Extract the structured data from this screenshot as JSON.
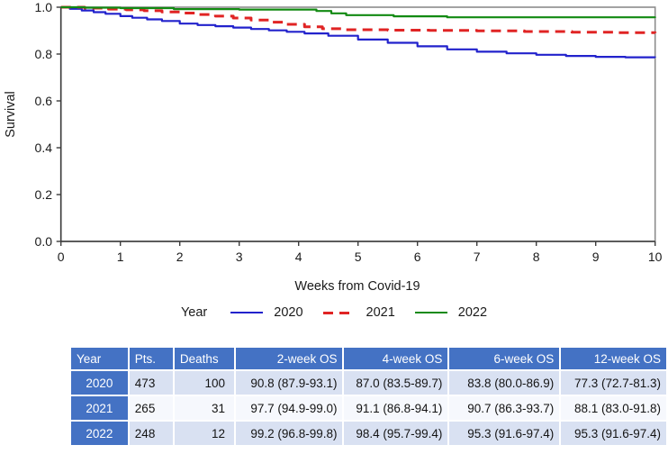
{
  "chart_data": {
    "type": "line",
    "subtype": "kaplan-meier-step",
    "title": "",
    "xlabel": "Weeks from Covid-19",
    "ylabel": "Survival",
    "xlim": [
      0,
      10
    ],
    "ylim": [
      0.0,
      1.0
    ],
    "grid": false,
    "xticks": [
      {
        "label": "0",
        "value": 0
      },
      {
        "label": "1",
        "value": 1
      },
      {
        "label": "2",
        "value": 2
      },
      {
        "label": "3",
        "value": 3
      },
      {
        "label": "4",
        "value": 4
      },
      {
        "label": "5",
        "value": 5
      },
      {
        "label": "6",
        "value": 6
      },
      {
        "label": "7",
        "value": 7
      },
      {
        "label": "8",
        "value": 8
      },
      {
        "label": "9",
        "value": 9
      },
      {
        "label": "10",
        "value": 10
      }
    ],
    "yticks": [
      {
        "label": "0.0",
        "value": 0.0
      },
      {
        "label": "0.2",
        "value": 0.2
      },
      {
        "label": "0.4",
        "value": 0.4
      },
      {
        "label": "0.6",
        "value": 0.6
      },
      {
        "label": "0.8",
        "value": 0.8
      },
      {
        "label": "1.0",
        "value": 1.0
      }
    ],
    "legend": {
      "title": "Year",
      "position": "bottom"
    },
    "series": [
      {
        "name": "2020",
        "color": "#2222cc",
        "style": "solid",
        "x": [
          0,
          0.15,
          0.35,
          0.55,
          0.75,
          1.0,
          1.2,
          1.45,
          1.7,
          2.0,
          2.3,
          2.6,
          2.9,
          3.2,
          3.5,
          3.8,
          4.1,
          4.5,
          5.0,
          5.5,
          6.0,
          6.5,
          7.0,
          7.5,
          8.0,
          8.5,
          9.0,
          9.5,
          10
        ],
        "y": [
          1.0,
          0.993,
          0.986,
          0.979,
          0.972,
          0.962,
          0.955,
          0.948,
          0.941,
          0.93,
          0.924,
          0.919,
          0.913,
          0.907,
          0.901,
          0.895,
          0.888,
          0.878,
          0.862,
          0.848,
          0.833,
          0.82,
          0.81,
          0.803,
          0.797,
          0.792,
          0.788,
          0.786,
          0.785
        ]
      },
      {
        "name": "2021",
        "color": "#e02424",
        "style": "dashed",
        "x": [
          0,
          0.4,
          0.8,
          1.1,
          1.4,
          1.7,
          2.0,
          2.3,
          2.6,
          2.9,
          3.2,
          3.5,
          3.8,
          4.1,
          4.4,
          4.8,
          5.5,
          6.2,
          7.0,
          7.8,
          8.6,
          9.3,
          10
        ],
        "y": [
          1.0,
          0.996,
          0.992,
          0.989,
          0.985,
          0.98,
          0.975,
          0.969,
          0.962,
          0.954,
          0.945,
          0.936,
          0.927,
          0.916,
          0.908,
          0.904,
          0.902,
          0.901,
          0.899,
          0.896,
          0.893,
          0.891,
          0.89
        ]
      },
      {
        "name": "2022",
        "color": "#128a12",
        "style": "solid",
        "x": [
          0,
          0.4,
          1.0,
          1.9,
          3.0,
          4.3,
          4.55,
          4.8,
          5.6,
          6.5,
          10
        ],
        "y": [
          1.0,
          0.998,
          0.996,
          0.992,
          0.99,
          0.984,
          0.974,
          0.966,
          0.961,
          0.957,
          0.955
        ]
      }
    ]
  },
  "table": {
    "headers": [
      "Year",
      "Pts.",
      "Deaths",
      "2-week OS",
      "4-week OS",
      "6-week OS",
      "12-week OS"
    ],
    "rows": [
      [
        "2020",
        "473",
        "100",
        "90.8 (87.9-93.1)",
        "87.0 (83.5-89.7)",
        "83.8 (80.0-86.9)",
        "77.3 (72.7-81.3)"
      ],
      [
        "2021",
        "265",
        "31",
        "97.7 (94.9-99.0)",
        "91.1 (86.8-94.1)",
        "90.7 (86.3-93.7)",
        "88.1 (83.0-91.8)"
      ],
      [
        "2022",
        "248",
        "12",
        "99.2 (96.8-99.8)",
        "98.4 (95.7-99.4)",
        "95.3 (91.6-97.4)",
        "95.3 (91.6-97.4)"
      ]
    ],
    "colors": {
      "header_bg": "#4472C4",
      "year_cell_bg": "#4472C4",
      "band_row_bg": "#D9E1F2",
      "alt_row_bg": "#F6F8FD"
    }
  },
  "plot_colors": {
    "border": "#8c8c8c",
    "axis": "#3c3c3c"
  }
}
